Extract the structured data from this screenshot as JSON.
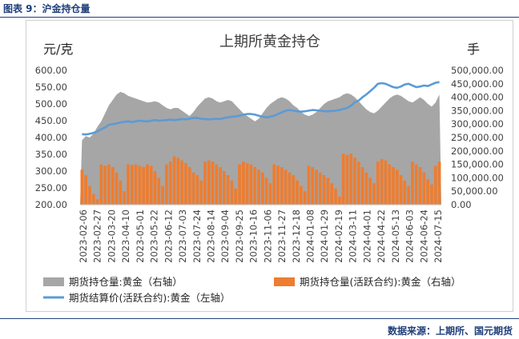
{
  "figure_caption": "图表 9：沪金持仓量",
  "source_text": "数据来源：上期所、国元期货",
  "chart_data": {
    "type": "bar+area+line",
    "title": "上期所黄金持仓",
    "left_axis_unit": "元/克",
    "right_axis_unit": "手",
    "y_left": {
      "min": 200,
      "max": 600,
      "ticks": [
        "200.00",
        "250.00",
        "300.00",
        "350.00",
        "400.00",
        "450.00",
        "500.00",
        "550.00",
        "600.00"
      ]
    },
    "y_right": {
      "min": 0,
      "max": 500000,
      "ticks": [
        "0.00",
        "50,000.00",
        "100,000.00",
        "150,000.00",
        "200,000.00",
        "250,000.00",
        "300,000.00",
        "350,000.00",
        "400,000.00",
        "450,000.00",
        "500,000.00"
      ]
    },
    "x_tick_labels": [
      "2023-02-06",
      "2023-02-27",
      "2023-03-20",
      "2023-04-10",
      "2023-05-01",
      "2023-05-22",
      "2023-06-12",
      "2023-07-03",
      "2023-07-24",
      "2023-08-14",
      "2023-09-04",
      "2023-09-25",
      "2023-10-16",
      "2023-11-06",
      "2023-11-27",
      "2023-12-18",
      "2024-01-08",
      "2024-01-29",
      "2024-02-19",
      "2024-03-11",
      "2024-04-01",
      "2024-04-22",
      "2024-05-13",
      "2024-06-03",
      "2024-06-24",
      "2024-07-15"
    ],
    "legend": [
      "期货持仓量:黄金（右轴）",
      "期货持仓量(活跃合约):黄金（右轴）",
      "期货结算价(活跃合约):黄金（左轴）"
    ],
    "colors": {
      "total_oi": "#a6a6a6",
      "active_oi": "#ed7d31",
      "price": "#5b9bd5"
    },
    "series": [
      {
        "name": "期货持仓量:黄金（右轴）",
        "axis": "right",
        "values": [
          240000,
          255000,
          250000,
          265000,
          290000,
          310000,
          340000,
          370000,
          390000,
          410000,
          420000,
          415000,
          405000,
          400000,
          395000,
          390000,
          385000,
          380000,
          382000,
          385000,
          380000,
          370000,
          360000,
          355000,
          360000,
          360000,
          350000,
          340000,
          330000,
          345000,
          365000,
          380000,
          395000,
          400000,
          395000,
          385000,
          380000,
          385000,
          390000,
          385000,
          370000,
          355000,
          340000,
          330000,
          320000,
          310000,
          320000,
          340000,
          360000,
          375000,
          385000,
          395000,
          400000,
          395000,
          385000,
          370000,
          360000,
          345000,
          335000,
          330000,
          335000,
          345000,
          360000,
          375000,
          385000,
          390000,
          395000,
          400000,
          410000,
          415000,
          410000,
          400000,
          385000,
          370000,
          355000,
          345000,
          340000,
          350000,
          365000,
          380000,
          395000,
          405000,
          410000,
          405000,
          395000,
          385000,
          380000,
          390000,
          400000,
          390000,
          375000,
          365000,
          380000,
          410000
        ]
      },
      {
        "name": "期货持仓量(活跃合约):黄金（右轴）",
        "axis": "right",
        "values": [
          130000,
          110000,
          70000,
          40000,
          20000,
          150000,
          145000,
          150000,
          140000,
          120000,
          90000,
          50000,
          150000,
          148000,
          150000,
          145000,
          140000,
          150000,
          145000,
          125000,
          100000,
          70000,
          150000,
          160000,
          180000,
          175000,
          165000,
          155000,
          140000,
          120000,
          110000,
          90000,
          160000,
          165000,
          160000,
          150000,
          140000,
          125000,
          110000,
          90000,
          60000,
          150000,
          160000,
          155000,
          150000,
          140000,
          130000,
          120000,
          100000,
          80000,
          150000,
          145000,
          140000,
          130000,
          120000,
          110000,
          90000,
          70000,
          50000,
          145000,
          140000,
          130000,
          120000,
          110000,
          100000,
          80000,
          60000,
          30000,
          190000,
          185000,
          190000,
          175000,
          160000,
          140000,
          120000,
          100000,
          80000,
          160000,
          170000,
          165000,
          150000,
          140000,
          130000,
          110000,
          90000,
          70000,
          160000,
          150000,
          140000,
          120000,
          95000,
          75000,
          145000,
          160000
        ]
      },
      {
        "name": "期货结算价(活跃合约):黄金（左轴）",
        "axis": "left",
        "values": [
          410,
          409,
          411,
          414,
          418,
          425,
          430,
          438,
          440,
          442,
          445,
          447,
          448,
          446,
          448,
          450,
          449,
          448,
          450,
          452,
          450,
          451,
          452,
          453,
          452,
          453,
          455,
          454,
          456,
          458,
          458,
          456,
          455,
          454,
          455,
          456,
          455,
          458,
          460,
          462,
          463,
          465,
          468,
          470,
          470,
          468,
          465,
          462,
          460,
          462,
          465,
          470,
          475,
          480,
          482,
          480,
          478,
          477,
          478,
          480,
          482,
          481,
          480,
          478,
          478,
          479,
          480,
          482,
          485,
          488,
          495,
          505,
          510,
          520,
          528,
          538,
          548,
          560,
          562,
          560,
          555,
          550,
          548,
          552,
          558,
          560,
          555,
          550,
          552,
          555,
          553,
          558,
          563,
          565
        ]
      }
    ]
  }
}
